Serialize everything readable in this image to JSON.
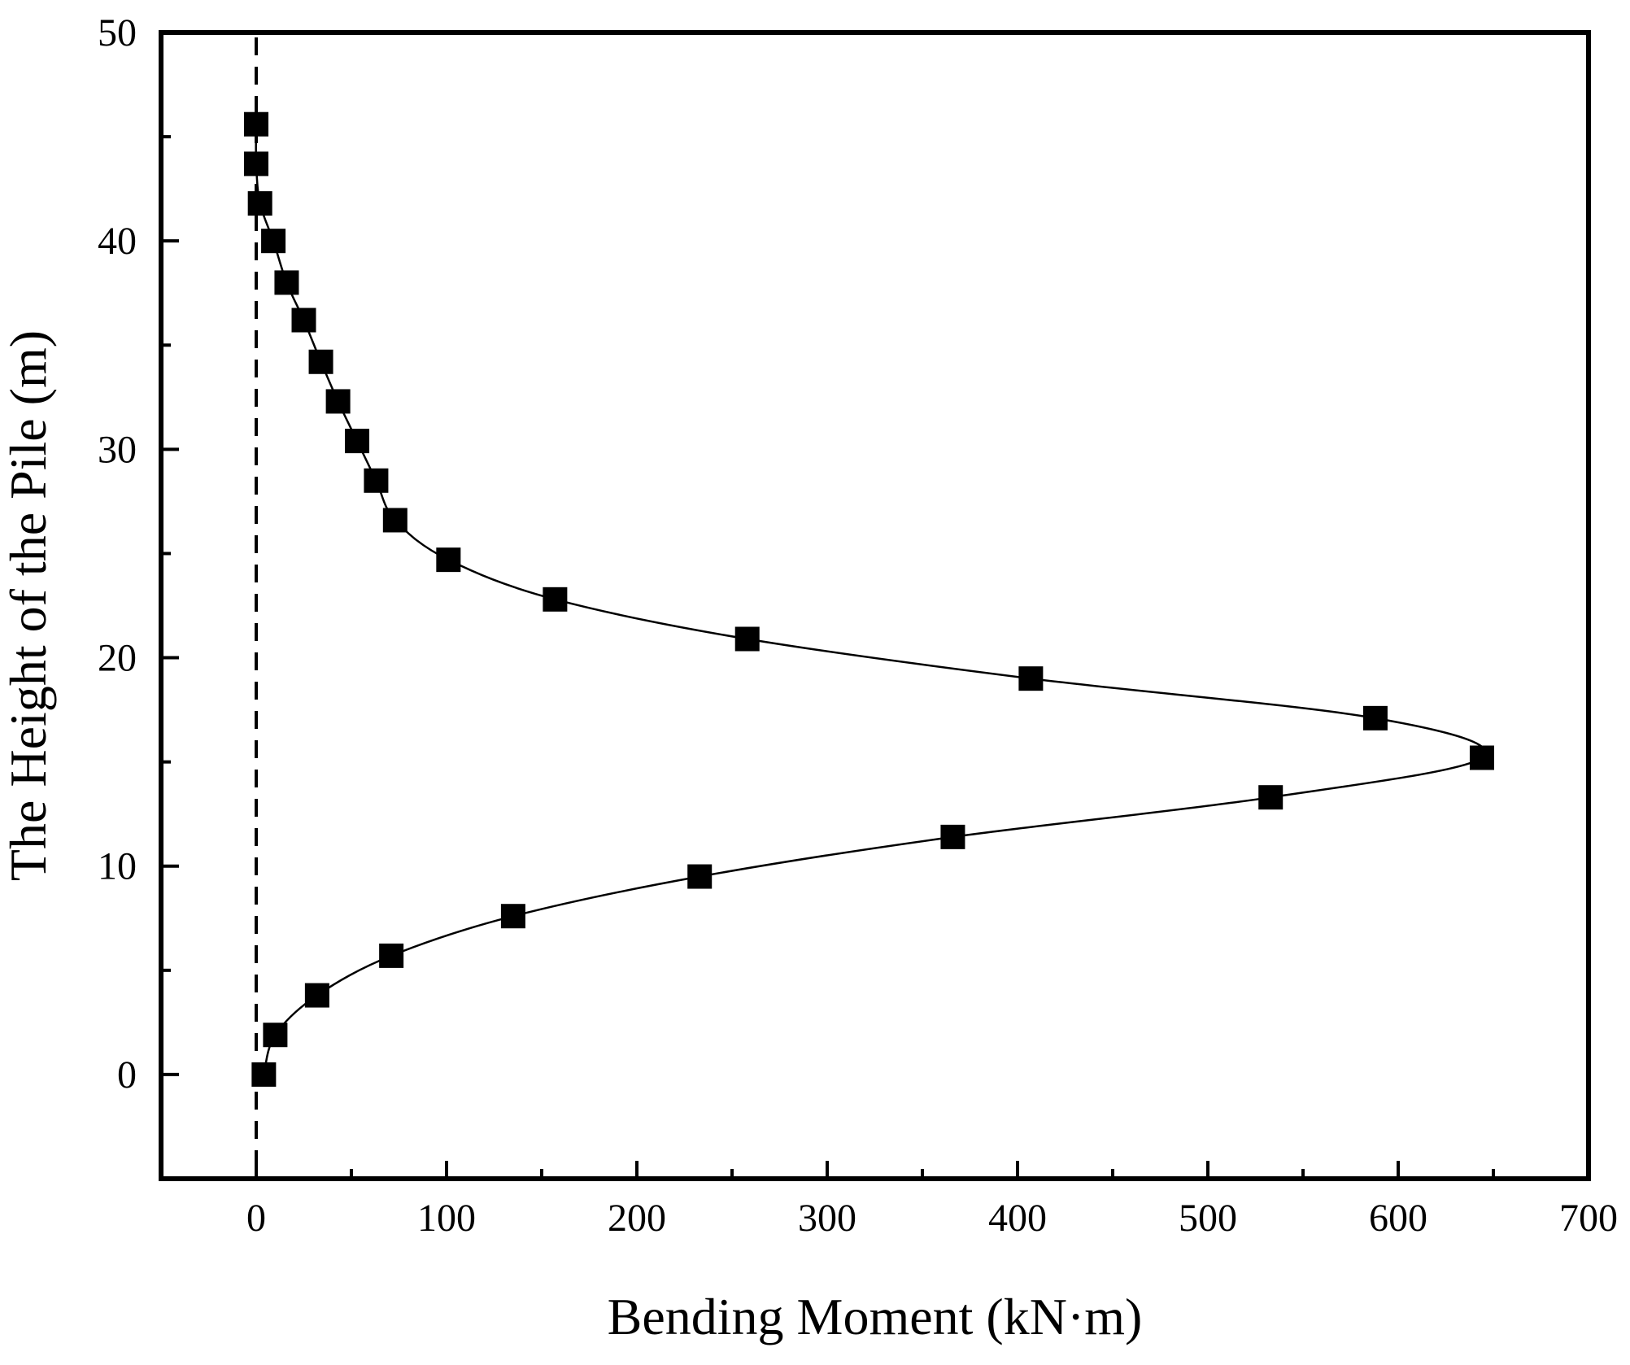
{
  "chart_data": {
    "type": "line",
    "title": "",
    "xlabel": "Bending Moment (kN·m)",
    "ylabel": "The Height of the Pile (m)",
    "xlim": [
      -50,
      700
    ],
    "ylim": [
      -5,
      50
    ],
    "xticks": [
      0,
      100,
      200,
      300,
      400,
      500,
      600,
      700
    ],
    "yticks": [
      0,
      10,
      20,
      30,
      40,
      50
    ],
    "grid": false,
    "legend": "none",
    "marker": "square",
    "reference_line": {
      "x": 0,
      "style": "dashed"
    },
    "colors": {
      "line": "#000000",
      "marker": "#000000",
      "frame": "#000000"
    },
    "series": [
      {
        "x": [
          0,
          0,
          2,
          9,
          16,
          25,
          34,
          43,
          53,
          63,
          73,
          101,
          157,
          258,
          407,
          588,
          644,
          533,
          366,
          233,
          135,
          71,
          32,
          10,
          4
        ],
        "y": [
          45.6,
          43.7,
          41.8,
          40.0,
          38.0,
          36.2,
          34.2,
          32.3,
          30.4,
          28.5,
          26.6,
          24.7,
          22.8,
          20.9,
          19.0,
          17.1,
          15.2,
          13.3,
          11.4,
          9.5,
          7.6,
          5.7,
          3.8,
          1.9,
          0.0
        ]
      }
    ]
  }
}
